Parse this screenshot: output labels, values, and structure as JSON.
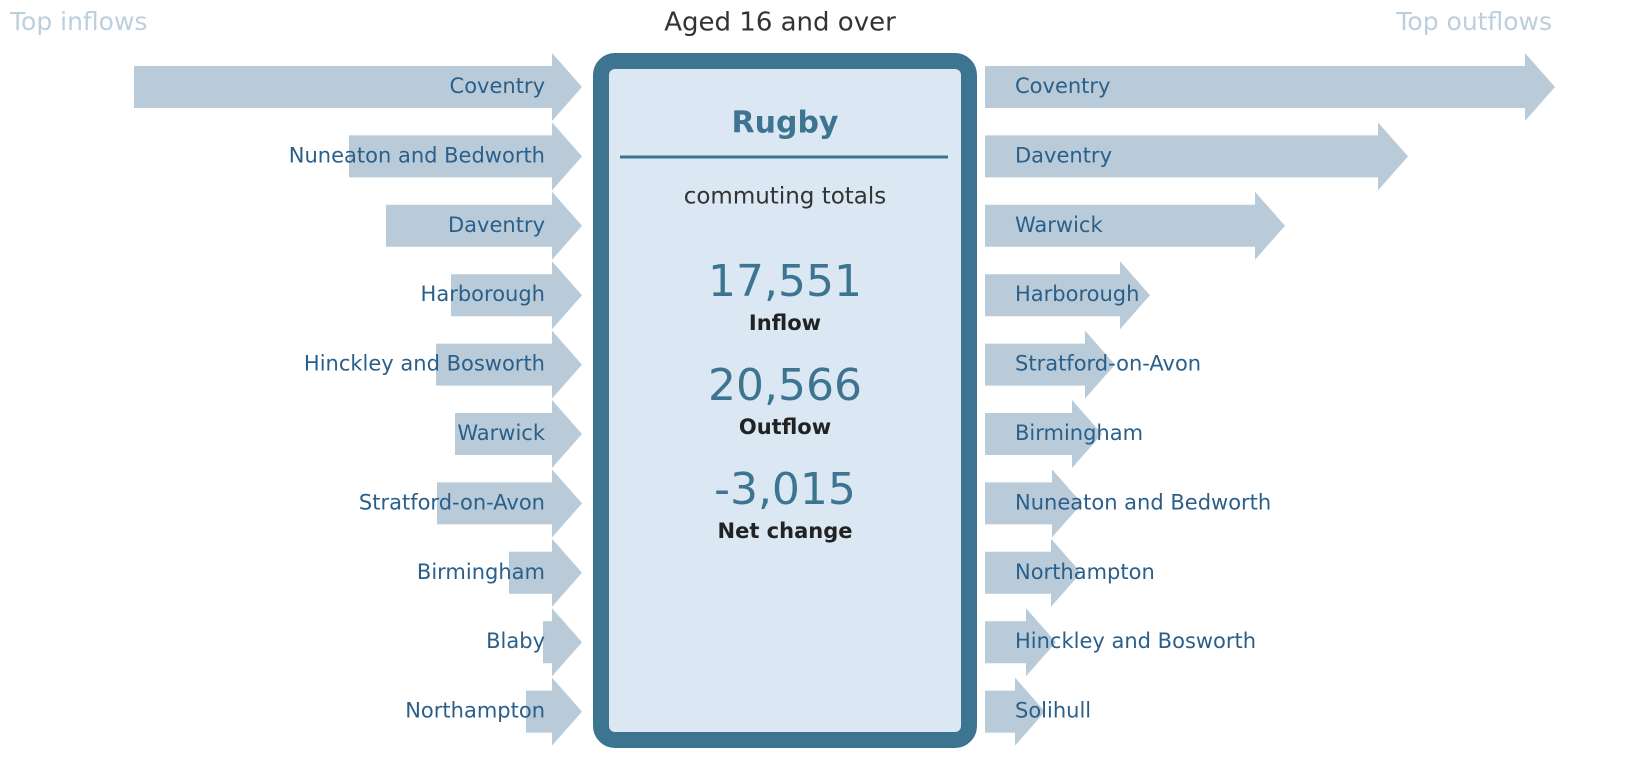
{
  "header": {
    "left": "Top inflows",
    "title": "Aged 16 and over",
    "right": "Top outflows"
  },
  "center": {
    "place": "Rugby",
    "subtitle": "commuting totals",
    "totals": [
      {
        "number": "17,551",
        "label": "Inflow"
      },
      {
        "number": "20,566",
        "label": "Outflow"
      },
      {
        "number": "-3,015",
        "label": "Net change"
      }
    ]
  },
  "inflows": {
    "names": [
      "Coventry",
      "Nuneaton and Bedworth",
      "Daventry",
      "Harborough",
      "Hinckley and Bosworth",
      "Warwick",
      "Stratford-on-Avon",
      "Birmingham",
      "Blaby",
      "Northampton"
    ],
    "values": [
      4480,
      2330,
      1960,
      1310,
      1460,
      1270,
      1450,
      730,
      390,
      560
    ]
  },
  "outflows": {
    "names": [
      "Coventry",
      "Daventry",
      "Warwick",
      "Harborough",
      "Stratford-on-Avon",
      "Birmingham",
      "Nuneaton and Bedworth",
      "Northampton",
      "Hinckley and Bosworth",
      "Solihull"
    ],
    "values": [
      5700,
      4230,
      3000,
      1650,
      1300,
      1170,
      970,
      960,
      710,
      600
    ]
  }
}
